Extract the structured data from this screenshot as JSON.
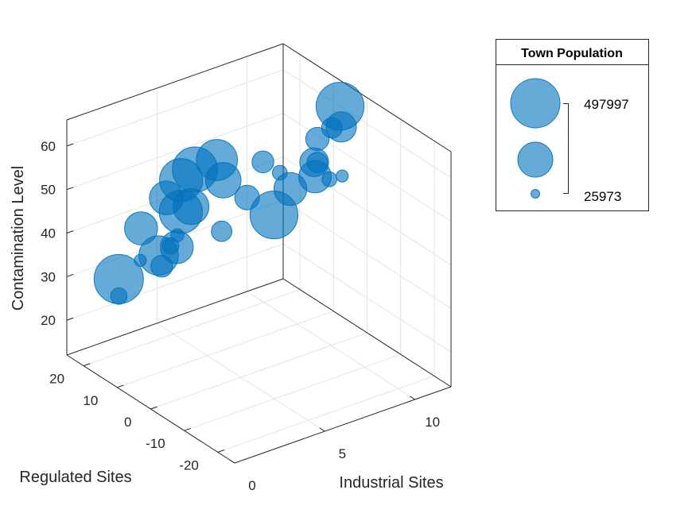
{
  "chart_data": {
    "type": "scatter",
    "variant": "bubble-3d",
    "xlabel": "Industrial Sites",
    "ylabel": "Regulated Sites",
    "zlabel": "Contamination Level",
    "xlim": [
      0,
      12
    ],
    "ylim": [
      -25,
      25
    ],
    "zlim": [
      12,
      66
    ],
    "xticks": [
      0,
      5,
      10
    ],
    "yticks": [
      -20,
      -10,
      0,
      10,
      20
    ],
    "zticks": [
      20,
      30,
      40,
      50,
      60
    ],
    "grid": true,
    "color": "#0072bd",
    "size_legend": {
      "title": "Town Population",
      "max_label": "497997",
      "min_label": "25973",
      "max_value": 497997,
      "min_value": 25973,
      "placement": "right"
    },
    "points": [
      {
        "x": 2.6,
        "y": 5,
        "z": 51,
        "size": 385000
      },
      {
        "x": 4.6,
        "y": 5,
        "z": 60,
        "size": 350000
      },
      {
        "x": 1.0,
        "y": 14.9,
        "z": 33,
        "size": 497997
      },
      {
        "x": 1.8,
        "y": 7.3,
        "z": 41,
        "size": 323000
      },
      {
        "x": 2.2,
        "y": 14.7,
        "z": 43,
        "size": 230000
      },
      {
        "x": 3.1,
        "y": 12.0,
        "z": 50,
        "size": 240000
      },
      {
        "x": 3.5,
        "y": 6.8,
        "z": 50,
        "size": 268000
      },
      {
        "x": 3.9,
        "y": 11.9,
        "z": 53,
        "size": 383000
      },
      {
        "x": 4.5,
        "y": 11.0,
        "z": 55,
        "size": 420000
      },
      {
        "x": 5.4,
        "y": 7.4,
        "z": 53,
        "size": 263000
      },
      {
        "x": 6.5,
        "y": 6.2,
        "z": 48,
        "size": 133000
      },
      {
        "x": 6.5,
        "y": -1.8,
        "z": 48,
        "size": 470000
      },
      {
        "x": 7.8,
        "y": 0.3,
        "z": 51,
        "size": 228000
      },
      {
        "x": 10.1,
        "y": 5.3,
        "z": 48,
        "size": 222000
      },
      {
        "x": 9.5,
        "y": -2.2,
        "z": 52,
        "size": 55000
      },
      {
        "x": 11.6,
        "y": 13.6,
        "z": 45,
        "size": 178000
      },
      {
        "x": 3.4,
        "y": 10.5,
        "z": 39,
        "size": 228000
      },
      {
        "x": 7.6,
        "y": 7.4,
        "z": 54,
        "size": 106000
      },
      {
        "x": 0.3,
        "y": 11.1,
        "z": 32,
        "size": 65000
      },
      {
        "x": 1.8,
        "y": 6.4,
        "z": 39,
        "size": 106000
      },
      {
        "x": 1.6,
        "y": 11.7,
        "z": 38,
        "size": 40000
      },
      {
        "x": 3.0,
        "y": 10.2,
        "z": 40,
        "size": 65000
      },
      {
        "x": 3.6,
        "y": 11.4,
        "z": 41,
        "size": 45000
      },
      {
        "x": 10.0,
        "y": 4.1,
        "z": 52,
        "size": 95000
      },
      {
        "x": 10.9,
        "y": 1.8,
        "z": 60,
        "size": 195000
      },
      {
        "x": 10.1,
        "y": 4.6,
        "z": 57,
        "size": 120000
      },
      {
        "x": 11.0,
        "y": 5.1,
        "z": 58,
        "size": 95000
      },
      {
        "x": 9.3,
        "y": 11.5,
        "z": 47,
        "size": 55000
      },
      {
        "x": 10.8,
        "y": 1.6,
        "z": 65,
        "size": 470000
      },
      {
        "x": 8.2,
        "y": -13.0,
        "z": 60,
        "size": 40000
      },
      {
        "x": 2.5,
        "y": -7.7,
        "z": 53,
        "size": 95000
      }
    ]
  }
}
